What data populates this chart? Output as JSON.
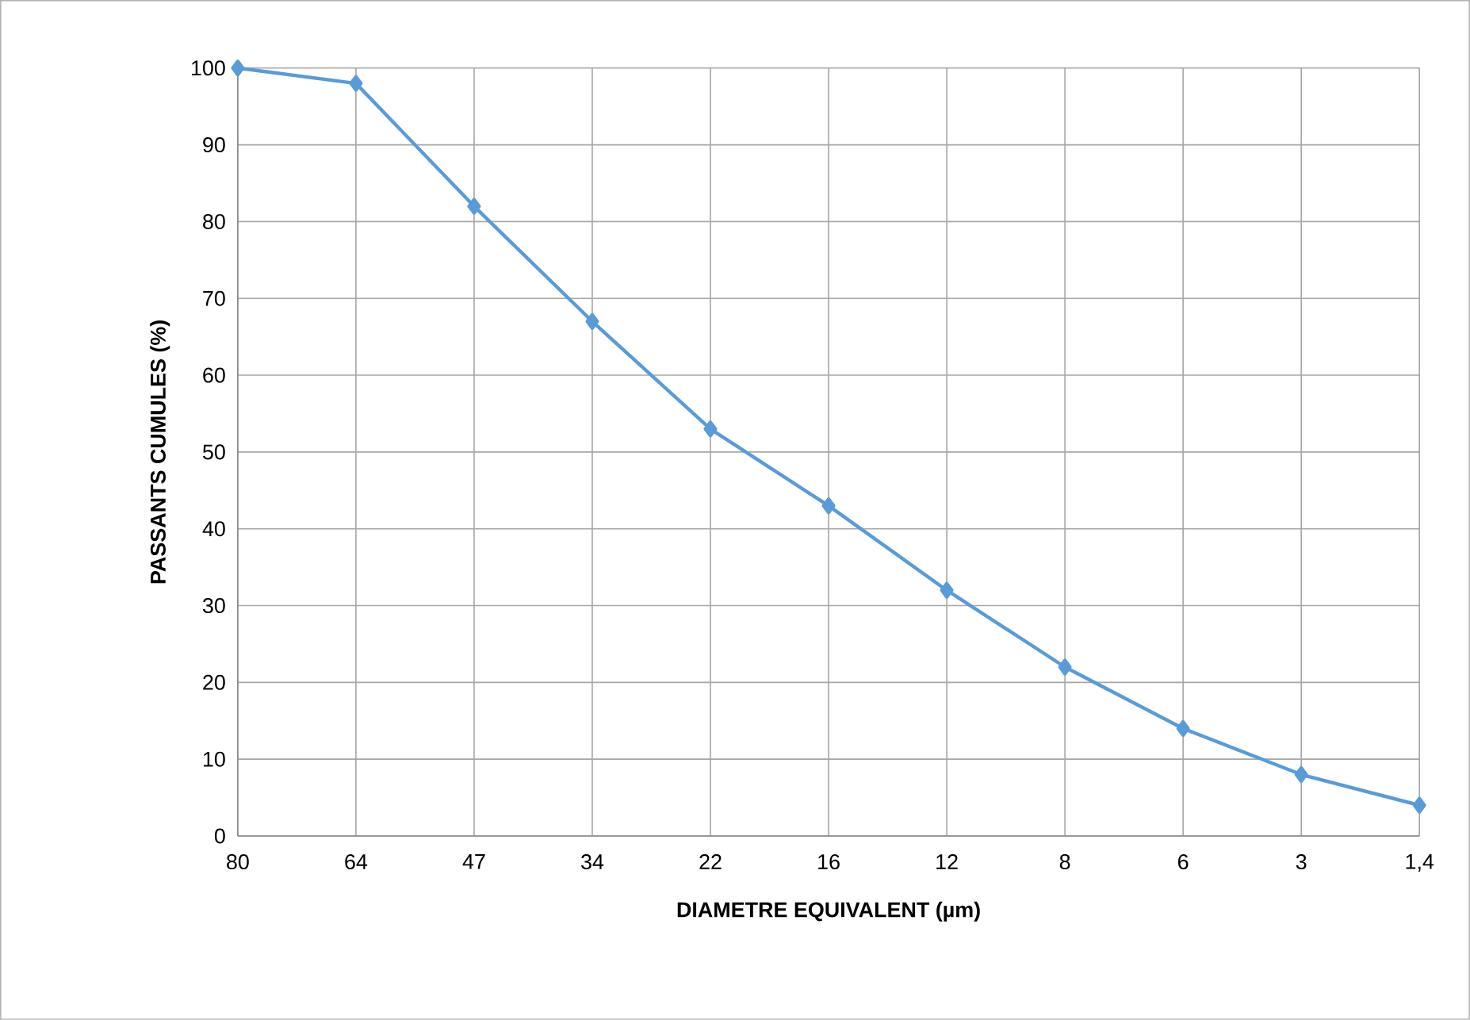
{
  "chart_data": {
    "type": "line",
    "xlabel": "DIAMETRE EQUIVALENT (µm)",
    "ylabel": "PASSANTS CUMULES (%)",
    "categories": [
      "80",
      "64",
      "47",
      "34",
      "22",
      "16",
      "12",
      "8",
      "6",
      "3",
      "1,4"
    ],
    "series": [
      {
        "color": "#5b9bd5",
        "values": [
          100,
          98,
          82,
          67,
          53,
          43,
          32,
          22,
          14,
          8,
          4
        ]
      }
    ],
    "ylim": [
      0,
      100
    ],
    "yticks": [
      0,
      10,
      20,
      30,
      40,
      50,
      60,
      70,
      80,
      90,
      100
    ],
    "grid": true,
    "marker": "diamond",
    "line_style": "solid"
  }
}
